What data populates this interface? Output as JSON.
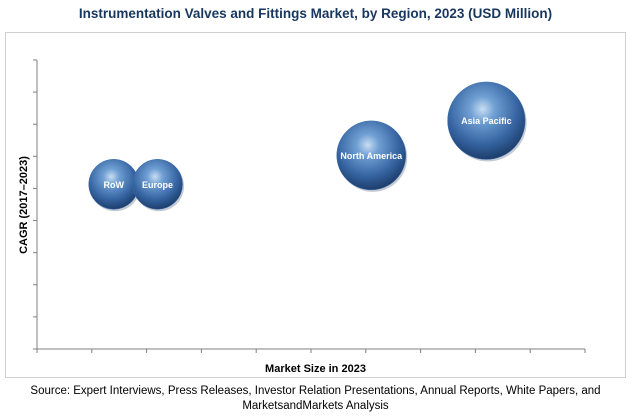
{
  "chart_data": {
    "type": "scatter",
    "title": "Instrumentation Valves and Fittings Market, by Region, 2023 (USD Million)",
    "xlabel": "Market Size in 2023",
    "ylabel": "CAGR (2017–2023)",
    "xlim": [
      0,
      100
    ],
    "ylim": [
      0,
      100
    ],
    "grid": false,
    "legend": "none",
    "bubble_color": "#3d6fae",
    "points": [
      {
        "label": "RoW",
        "x": 14,
        "y": 57,
        "size": 1.0
      },
      {
        "label": "Europe",
        "x": 22,
        "y": 57,
        "size": 1.0
      },
      {
        "label": "North America",
        "x": 61,
        "y": 67,
        "size": 1.38
      },
      {
        "label": "Asia Pacific",
        "x": 82,
        "y": 79,
        "size": 1.55
      }
    ]
  },
  "source": "Source: Expert Interviews, Press Releases, Investor Relation Presentations, Annual Reports, White Papers, and MarketsandMarkets Analysis"
}
